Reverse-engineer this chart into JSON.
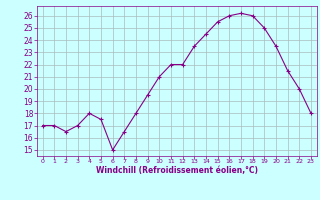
{
  "x": [
    0,
    1,
    2,
    3,
    4,
    5,
    6,
    7,
    8,
    9,
    10,
    11,
    12,
    13,
    14,
    15,
    16,
    17,
    18,
    19,
    20,
    21,
    22,
    23
  ],
  "y": [
    17.0,
    17.0,
    16.5,
    17.0,
    18.0,
    17.5,
    15.0,
    16.5,
    18.0,
    19.5,
    21.0,
    22.0,
    22.0,
    23.5,
    24.5,
    25.5,
    26.0,
    26.2,
    26.0,
    25.0,
    23.5,
    21.5,
    20.0,
    18.0
  ],
  "line_color": "#880088",
  "marker": "P",
  "bg_color": "#ccffff",
  "grid_color": "#aabbbb",
  "xlabel": "Windchill (Refroidissement éolien,°C)",
  "xlabel_color": "#880088",
  "tick_color": "#880088",
  "ylim": [
    14.5,
    26.8
  ],
  "xlim": [
    -0.5,
    23.5
  ],
  "yticks": [
    15,
    16,
    17,
    18,
    19,
    20,
    21,
    22,
    23,
    24,
    25,
    26
  ],
  "xticks": [
    0,
    1,
    2,
    3,
    4,
    5,
    6,
    7,
    8,
    9,
    10,
    11,
    12,
    13,
    14,
    15,
    16,
    17,
    18,
    19,
    20,
    21,
    22,
    23
  ],
  "linewidth": 1.0,
  "markersize": 3
}
